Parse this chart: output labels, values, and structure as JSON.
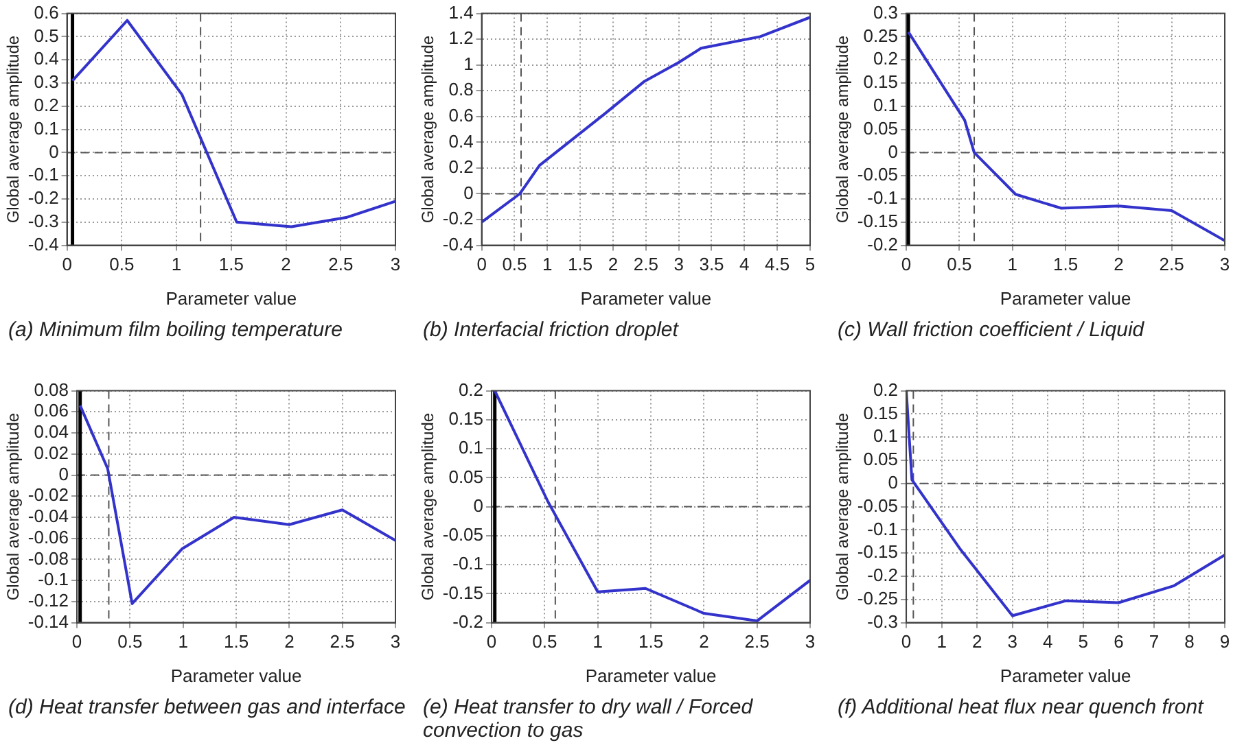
{
  "chart_data": [
    {
      "type": "line",
      "title": "(a) Minimum film boiling temperature",
      "xlabel": "Parameter value",
      "ylabel": "Global average amplitude",
      "x": [
        0.05,
        0.55,
        1.05,
        1.55,
        2.05,
        2.55,
        3
      ],
      "series": [
        {
          "color": "#3333cc",
          "values": [
            0.31,
            0.57,
            0.25,
            -0.3,
            -0.32,
            -0.28,
            -0.21
          ]
        }
      ],
      "xlim": [
        0,
        3
      ],
      "xticks": [
        0,
        0.5,
        1,
        1.5,
        2,
        2.5,
        3
      ],
      "ylim": [
        -0.4,
        0.6
      ],
      "yticks": [
        -0.4,
        -0.3,
        -0.2,
        -0.1,
        0,
        0.1,
        0.2,
        0.3,
        0.4,
        0.5,
        0.6
      ],
      "grid": true,
      "marker": "none",
      "line_style": "solid",
      "ref_lines": [
        {
          "axis": "y",
          "value": 0,
          "color": "#555555",
          "line_style": "dashed"
        },
        {
          "axis": "x",
          "value": 1.22,
          "color": "#555555",
          "line_style": "dashed"
        },
        {
          "axis": "x",
          "value": 0.05,
          "color": "#000000",
          "line_style": "solid"
        }
      ]
    },
    {
      "type": "line",
      "title": "(b) Interfacial friction droplet",
      "xlabel": "Parameter value",
      "ylabel": "Global average amplitude",
      "x": [
        0,
        0.58,
        0.88,
        1.87,
        2.47,
        3,
        3.34,
        4.24,
        5
      ],
      "series": [
        {
          "color": "#3333cc",
          "values": [
            -0.22,
            0,
            0.22,
            0.62,
            0.87,
            1.02,
            1.13,
            1.22,
            1.37
          ]
        }
      ],
      "xlim": [
        0,
        5
      ],
      "xticks": [
        0,
        0.5,
        1,
        1.5,
        2,
        2.5,
        3,
        3.5,
        4,
        4.5,
        5
      ],
      "ylim": [
        -0.4,
        1.4
      ],
      "yticks": [
        -0.4,
        -0.2,
        0,
        0.2,
        0.4,
        0.6,
        0.8,
        1,
        1.2,
        1.4
      ],
      "grid": true,
      "marker": "none",
      "line_style": "solid",
      "ref_lines": [
        {
          "axis": "y",
          "value": 0,
          "color": "#555555",
          "line_style": "dashed"
        },
        {
          "axis": "x",
          "value": 0.6,
          "color": "#555555",
          "line_style": "dashed"
        }
      ]
    },
    {
      "type": "line",
      "title": "(c) Wall friction coefficient / Liquid",
      "xlabel": "Parameter value",
      "ylabel": "Global average amplitude",
      "x": [
        0.02,
        0.55,
        0.64,
        1.03,
        1.46,
        2,
        2.5,
        3
      ],
      "series": [
        {
          "color": "#3333cc",
          "values": [
            0.26,
            0.07,
            0,
            -0.09,
            -0.12,
            -0.115,
            -0.125,
            -0.19
          ]
        }
      ],
      "xlim": [
        0,
        3
      ],
      "xticks": [
        0,
        0.5,
        1,
        1.5,
        2,
        2.5,
        3
      ],
      "ylim": [
        -0.2,
        0.3
      ],
      "yticks": [
        -0.2,
        -0.15,
        -0.1,
        -0.05,
        0,
        0.05,
        0.1,
        0.15,
        0.2,
        0.25,
        0.3
      ],
      "grid": true,
      "marker": "none",
      "line_style": "solid",
      "ref_lines": [
        {
          "axis": "y",
          "value": 0,
          "color": "#555555",
          "line_style": "dashed"
        },
        {
          "axis": "x",
          "value": 0.64,
          "color": "#555555",
          "line_style": "dashed"
        },
        {
          "axis": "x",
          "value": 0.02,
          "color": "#000000",
          "line_style": "solid"
        }
      ]
    },
    {
      "type": "line",
      "title": "(d) Heat transfer between gas and interface",
      "xlabel": "Parameter value",
      "ylabel": "Global average amplitude",
      "x": [
        0.03,
        0.29,
        0.52,
        0.99,
        1.48,
        2,
        2.5,
        3
      ],
      "series": [
        {
          "color": "#3333cc",
          "values": [
            0.066,
            0.006,
            -0.122,
            -0.07,
            -0.04,
            -0.047,
            -0.033,
            -0.062
          ]
        }
      ],
      "xlim": [
        0,
        3
      ],
      "xticks": [
        0,
        0.5,
        1,
        1.5,
        2,
        2.5,
        3
      ],
      "ylim": [
        -0.14,
        0.08
      ],
      "yticks": [
        -0.14,
        -0.12,
        -0.1,
        -0.08,
        -0.06,
        -0.04,
        -0.02,
        0,
        0.02,
        0.04,
        0.06,
        0.08
      ],
      "grid": true,
      "marker": "none",
      "line_style": "solid",
      "ref_lines": [
        {
          "axis": "y",
          "value": 0,
          "color": "#555555",
          "line_style": "dashed"
        },
        {
          "axis": "x",
          "value": 0.3,
          "color": "#555555",
          "line_style": "dashed"
        },
        {
          "axis": "x",
          "value": 0.03,
          "color": "#000000",
          "line_style": "solid"
        }
      ]
    },
    {
      "type": "line",
      "title": "(e) Heat transfer to dry wall / Forced convection to gas",
      "xlabel": "Parameter value",
      "ylabel": "Global average amplitude",
      "x": [
        0.03,
        0.53,
        1,
        1.45,
        2,
        2.5,
        3
      ],
      "series": [
        {
          "color": "#3333cc",
          "values": [
            0.2,
            0.009,
            -0.147,
            -0.141,
            -0.184,
            -0.197,
            -0.127
          ]
        }
      ],
      "xlim": [
        0,
        3
      ],
      "xticks": [
        0,
        0.5,
        1,
        1.5,
        2,
        2.5,
        3
      ],
      "ylim": [
        -0.2,
        0.2
      ],
      "yticks": [
        -0.2,
        -0.15,
        -0.1,
        -0.05,
        0,
        0.05,
        0.1,
        0.15,
        0.2
      ],
      "grid": true,
      "marker": "none",
      "line_style": "solid",
      "ref_lines": [
        {
          "axis": "y",
          "value": 0,
          "color": "#555555",
          "line_style": "dashed"
        },
        {
          "axis": "x",
          "value": 0.6,
          "color": "#555555",
          "line_style": "dashed"
        },
        {
          "axis": "x",
          "value": 0.03,
          "color": "#000000",
          "line_style": "solid"
        }
      ]
    },
    {
      "type": "line",
      "title": "(f) Additional heat flux near quench front",
      "xlabel": "Parameter value",
      "ylabel": "Global average amplitude",
      "x": [
        0,
        0.16,
        1.53,
        3,
        4.5,
        6,
        7.55,
        9
      ],
      "series": [
        {
          "color": "#3333cc",
          "values": [
            0.2,
            0.008,
            -0.142,
            -0.285,
            -0.253,
            -0.257,
            -0.221,
            -0.154
          ]
        }
      ],
      "xlim": [
        0,
        9
      ],
      "xticks": [
        0,
        1,
        2,
        3,
        4,
        5,
        6,
        7,
        8,
        9
      ],
      "ylim": [
        -0.3,
        0.2
      ],
      "yticks": [
        -0.3,
        -0.25,
        -0.2,
        -0.15,
        -0.1,
        -0.05,
        0,
        0.05,
        0.1,
        0.15,
        0.2
      ],
      "grid": true,
      "marker": "none",
      "line_style": "solid",
      "ref_lines": [
        {
          "axis": "y",
          "value": 0,
          "color": "#555555",
          "line_style": "dashed"
        },
        {
          "axis": "x",
          "value": 0.2,
          "color": "#555555",
          "line_style": "dashed"
        }
      ]
    }
  ]
}
